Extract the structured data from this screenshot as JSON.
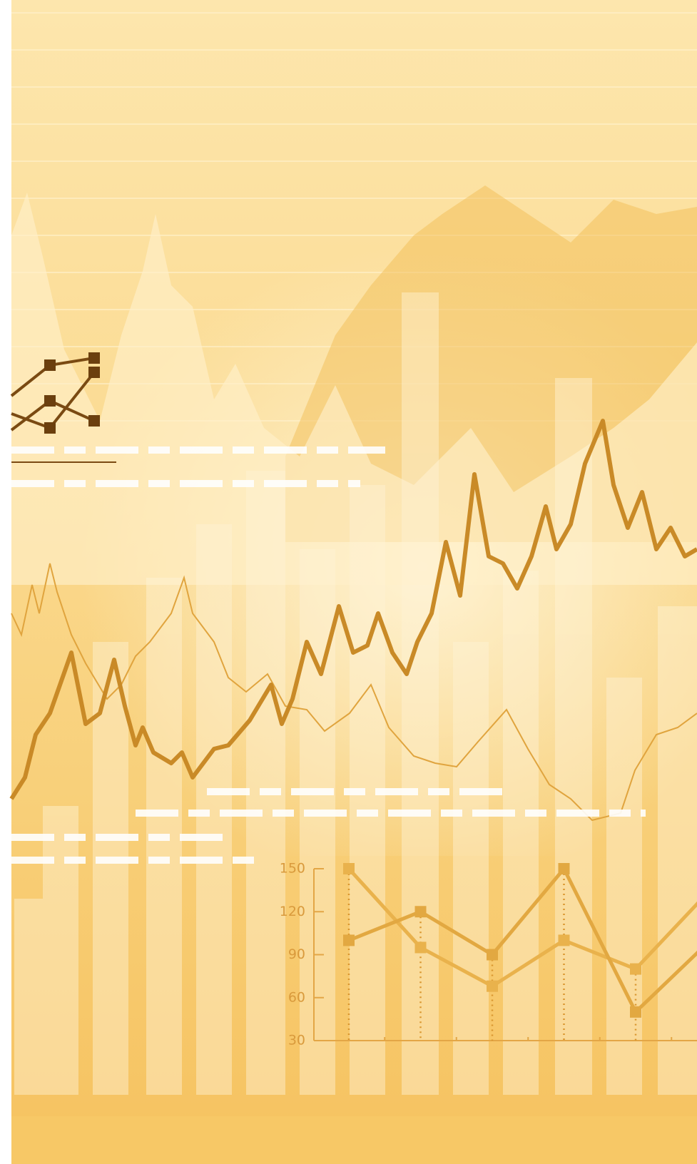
{
  "chart_data": {
    "type": "line",
    "categories": [
      null,
      null,
      null,
      null,
      null,
      null
    ],
    "series": [
      {
        "color": "#e9b24c",
        "values": [
          150,
          95,
          68,
          100,
          80,
          133
        ]
      },
      {
        "color": "#e2a841",
        "values": [
          100,
          120,
          90,
          150,
          50,
          98
        ]
      }
    ],
    "ylim": [
      30,
      150
    ],
    "yticks": [
      150,
      120,
      90,
      60,
      30
    ]
  }
}
